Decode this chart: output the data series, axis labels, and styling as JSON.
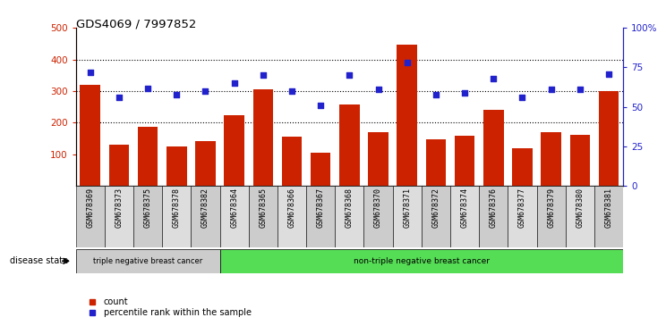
{
  "title": "GDS4069 / 7997852",
  "samples": [
    "GSM678369",
    "GSM678373",
    "GSM678375",
    "GSM678378",
    "GSM678382",
    "GSM678364",
    "GSM678365",
    "GSM678366",
    "GSM678367",
    "GSM678368",
    "GSM678370",
    "GSM678371",
    "GSM678372",
    "GSM678374",
    "GSM678376",
    "GSM678377",
    "GSM678379",
    "GSM678380",
    "GSM678381"
  ],
  "counts": [
    320,
    132,
    186,
    126,
    142,
    225,
    305,
    155,
    105,
    258,
    170,
    447,
    148,
    158,
    242,
    120,
    170,
    162,
    301
  ],
  "percentiles": [
    72,
    56,
    62,
    58,
    60,
    65,
    70,
    60,
    51,
    70,
    61,
    78,
    58,
    59,
    68,
    56,
    61,
    61,
    71
  ],
  "group1_label": "triple negative breast cancer",
  "group2_label": "non-triple negative breast cancer",
  "group1_count": 5,
  "bar_color": "#cc2200",
  "dot_color": "#2222cc",
  "ylim_left": [
    0,
    500
  ],
  "ylim_right": [
    0,
    100
  ],
  "yticks_left": [
    100,
    200,
    300,
    400,
    500
  ],
  "yticks_right": [
    0,
    25,
    50,
    75,
    100
  ],
  "ytick_labels_right": [
    "0",
    "25",
    "50",
    "75",
    "100%"
  ],
  "grid_values": [
    200,
    300,
    400
  ],
  "background_color": "#ffffff",
  "group1_bg": "#cccccc",
  "group2_bg": "#55dd55",
  "legend_count_label": "count",
  "legend_pct_label": "percentile rank within the sample",
  "col_bg_even": "#cccccc",
  "col_bg_odd": "#dddddd"
}
